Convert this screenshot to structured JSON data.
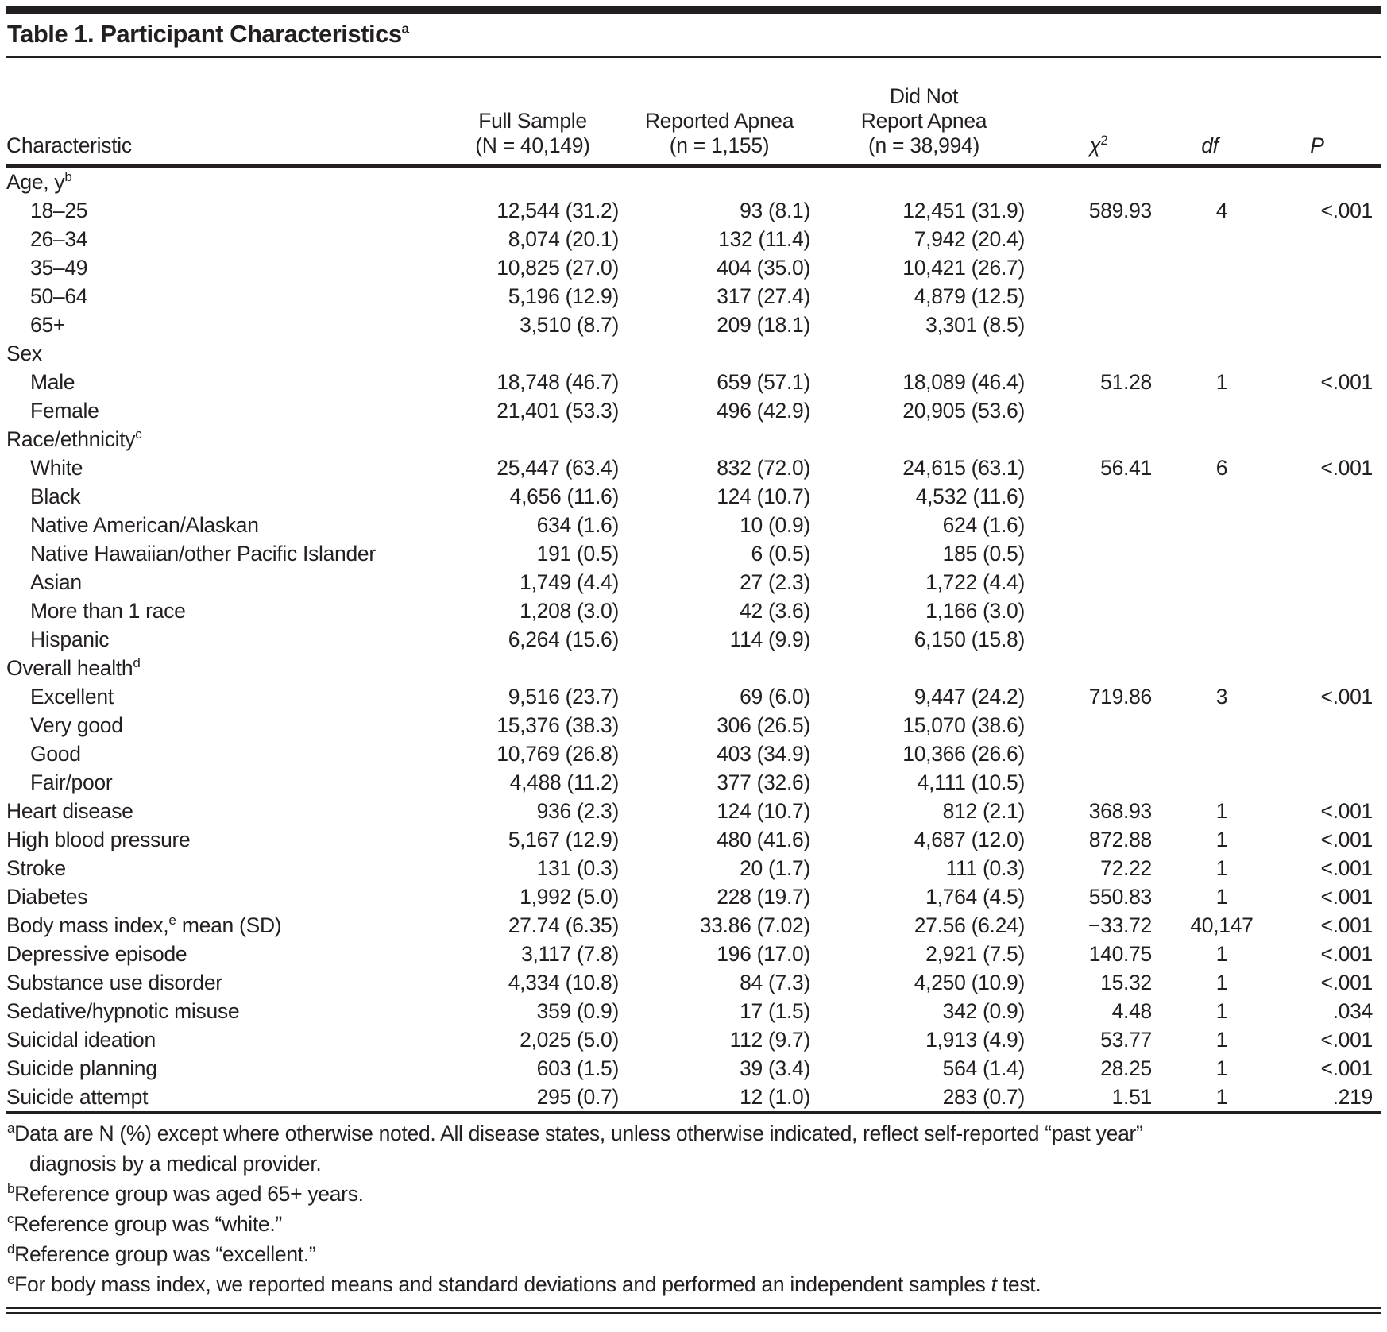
{
  "table": {
    "title": {
      "text": "Table 1. Participant Characteristics",
      "marker": "a"
    },
    "header": {
      "characteristic": "Characteristic",
      "col_full_sample": [
        "Full Sample",
        "(N = 40,149)"
      ],
      "col_reported": [
        "Reported Apnea",
        "(n = 1,155)"
      ],
      "col_not_reported": [
        "Did Not",
        "Report Apnea",
        "(n = 38,994)"
      ],
      "chi": {
        "base": "χ",
        "sup": "2"
      },
      "df": "df",
      "p": "P"
    },
    "rows": [
      {
        "label": "Age, y",
        "sup": "b",
        "indent": 0,
        "v": [
          "",
          "",
          "",
          "",
          "",
          ""
        ]
      },
      {
        "label": "18–25",
        "indent": 1,
        "v": [
          "12,544 (31.2)",
          "93 (8.1)",
          "12,451 (31.9)",
          "589.93",
          "4",
          "<.001"
        ]
      },
      {
        "label": "26–34",
        "indent": 1,
        "v": [
          "8,074 (20.1)",
          "132 (11.4)",
          "7,942 (20.4)",
          "",
          "",
          ""
        ]
      },
      {
        "label": "35–49",
        "indent": 1,
        "v": [
          "10,825 (27.0)",
          "404 (35.0)",
          "10,421 (26.7)",
          "",
          "",
          ""
        ]
      },
      {
        "label": "50–64",
        "indent": 1,
        "v": [
          "5,196 (12.9)",
          "317 (27.4)",
          "4,879 (12.5)",
          "",
          "",
          ""
        ]
      },
      {
        "label": "65+",
        "indent": 1,
        "v": [
          "3,510 (8.7)",
          "209 (18.1)",
          "3,301 (8.5)",
          "",
          "",
          ""
        ]
      },
      {
        "label": "Sex",
        "indent": 0,
        "v": [
          "",
          "",
          "",
          "",
          "",
          ""
        ]
      },
      {
        "label": "Male",
        "indent": 1,
        "v": [
          "18,748 (46.7)",
          "659 (57.1)",
          "18,089 (46.4)",
          "51.28",
          "1",
          "<.001"
        ]
      },
      {
        "label": "Female",
        "indent": 1,
        "v": [
          "21,401 (53.3)",
          "496 (42.9)",
          "20,905 (53.6)",
          "",
          "",
          ""
        ]
      },
      {
        "label": "Race/ethnicity",
        "sup": "c",
        "indent": 0,
        "v": [
          "",
          "",
          "",
          "",
          "",
          ""
        ]
      },
      {
        "label": "White",
        "indent": 1,
        "v": [
          "25,447 (63.4)",
          "832 (72.0)",
          "24,615 (63.1)",
          "56.41",
          "6",
          "<.001"
        ]
      },
      {
        "label": "Black",
        "indent": 1,
        "v": [
          "4,656 (11.6)",
          "124 (10.7)",
          "4,532 (11.6)",
          "",
          "",
          ""
        ]
      },
      {
        "label": "Native American/Alaskan",
        "indent": 1,
        "v": [
          "634 (1.6)",
          "10 (0.9)",
          "624 (1.6)",
          "",
          "",
          ""
        ]
      },
      {
        "label": "Native Hawaiian/other Pacific Islander",
        "indent": 1,
        "v": [
          "191 (0.5)",
          "6 (0.5)",
          "185 (0.5)",
          "",
          "",
          ""
        ]
      },
      {
        "label": "Asian",
        "indent": 1,
        "v": [
          "1,749 (4.4)",
          "27 (2.3)",
          "1,722 (4.4)",
          "",
          "",
          ""
        ]
      },
      {
        "label": "More than 1 race",
        "indent": 1,
        "v": [
          "1,208 (3.0)",
          "42 (3.6)",
          "1,166 (3.0)",
          "",
          "",
          ""
        ]
      },
      {
        "label": "Hispanic",
        "indent": 1,
        "v": [
          "6,264 (15.6)",
          "114 (9.9)",
          "6,150 (15.8)",
          "",
          "",
          ""
        ]
      },
      {
        "label": "Overall health",
        "sup": "d",
        "indent": 0,
        "v": [
          "",
          "",
          "",
          "",
          "",
          ""
        ]
      },
      {
        "label": "Excellent",
        "indent": 1,
        "v": [
          "9,516 (23.7)",
          "69 (6.0)",
          "9,447 (24.2)",
          "719.86",
          "3",
          "<.001"
        ]
      },
      {
        "label": "Very good",
        "indent": 1,
        "v": [
          "15,376 (38.3)",
          "306 (26.5)",
          "15,070 (38.6)",
          "",
          "",
          ""
        ]
      },
      {
        "label": "Good",
        "indent": 1,
        "v": [
          "10,769 (26.8)",
          "403 (34.9)",
          "10,366 (26.6)",
          "",
          "",
          ""
        ]
      },
      {
        "label": "Fair/poor",
        "indent": 1,
        "v": [
          "4,488 (11.2)",
          "377 (32.6)",
          "4,111 (10.5)",
          "",
          "",
          ""
        ]
      },
      {
        "label": "Heart disease",
        "indent": 0,
        "v": [
          "936 (2.3)",
          "124 (10.7)",
          "812 (2.1)",
          "368.93",
          "1",
          "<.001"
        ]
      },
      {
        "label": "High blood pressure",
        "indent": 0,
        "v": [
          "5,167 (12.9)",
          "480 (41.6)",
          "4,687 (12.0)",
          "872.88",
          "1",
          "<.001"
        ]
      },
      {
        "label": "Stroke",
        "indent": 0,
        "v": [
          "131 (0.3)",
          "20 (1.7)",
          "111 (0.3)",
          "72.22",
          "1",
          "<.001"
        ]
      },
      {
        "label": "Diabetes",
        "indent": 0,
        "v": [
          "1,992 (5.0)",
          "228 (19.7)",
          "1,764 (4.5)",
          "550.83",
          "1",
          "<.001"
        ]
      },
      {
        "label": "Body mass index,",
        "sup": "e",
        "suffix": " mean (SD)",
        "indent": 0,
        "v": [
          "27.74 (6.35)",
          "33.86 (7.02)",
          "27.56 (6.24)",
          "−33.72",
          "40,147",
          "<.001"
        ]
      },
      {
        "label": "Depressive episode",
        "indent": 0,
        "v": [
          "3,117 (7.8)",
          "196 (17.0)",
          "2,921 (7.5)",
          "140.75",
          "1",
          "<.001"
        ]
      },
      {
        "label": "Substance use disorder",
        "indent": 0,
        "v": [
          "4,334 (10.8)",
          "84 (7.3)",
          "4,250 (10.9)",
          "15.32",
          "1",
          "<.001"
        ]
      },
      {
        "label": "Sedative/hypnotic misuse",
        "indent": 0,
        "v": [
          "359 (0.9)",
          "17 (1.5)",
          "342 (0.9)",
          "4.48",
          "1",
          ".034"
        ]
      },
      {
        "label": "Suicidal ideation",
        "indent": 0,
        "v": [
          "2,025 (5.0)",
          "112 (9.7)",
          "1,913 (4.9)",
          "53.77",
          "1",
          "<.001"
        ]
      },
      {
        "label": "Suicide planning",
        "indent": 0,
        "v": [
          "603 (1.5)",
          "39 (3.4)",
          "564 (1.4)",
          "28.25",
          "1",
          "<.001"
        ]
      },
      {
        "label": "Suicide attempt",
        "indent": 0,
        "v": [
          "295 (0.7)",
          "12 (1.0)",
          "283 (0.7)",
          "1.51",
          "1",
          ".219"
        ]
      }
    ],
    "footnotes": [
      {
        "marker": "a",
        "lines": [
          [
            {
              "t": "Data are N (%) except where otherwise noted. All disease states, unless otherwise indicated, reflect self-reported “past year”"
            }
          ],
          [
            {
              "t": "diagnosis by a medical provider."
            }
          ]
        ]
      },
      {
        "marker": "b",
        "lines": [
          [
            {
              "t": "Reference group was aged 65+ years."
            }
          ]
        ]
      },
      {
        "marker": "c",
        "lines": [
          [
            {
              "t": "Reference group was “white.”"
            }
          ]
        ]
      },
      {
        "marker": "d",
        "lines": [
          [
            {
              "t": "Reference group was “excellent.”"
            }
          ]
        ]
      },
      {
        "marker": "e",
        "lines": [
          [
            {
              "t": "For body mass index, we reported means and standard deviations and performed an independent samples "
            },
            {
              "t": "t",
              "italic": true
            },
            {
              "t": " test."
            }
          ]
        ]
      }
    ],
    "ink_color": "#231f20"
  }
}
